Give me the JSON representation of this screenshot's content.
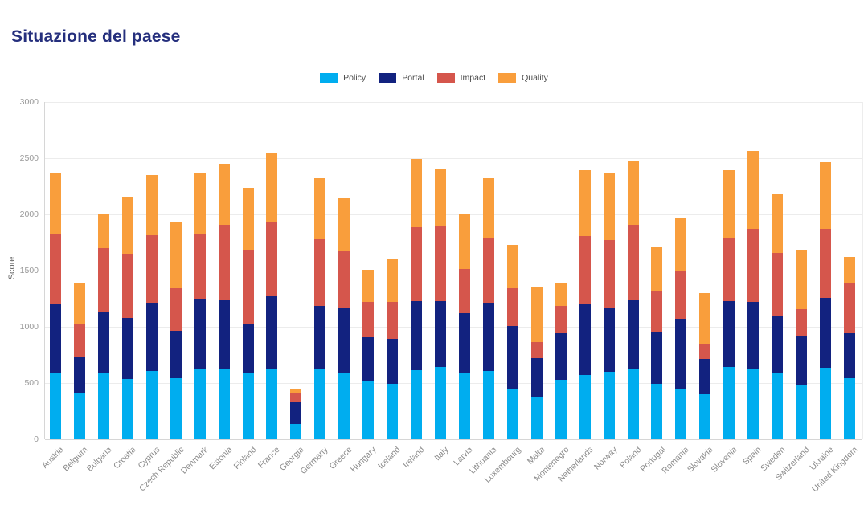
{
  "page": {
    "title": "Situazione del paese"
  },
  "chart_data": {
    "type": "bar",
    "stacked": true,
    "title": "Situazione del paese",
    "xlabel": "",
    "ylabel": "Score",
    "ylim": [
      0,
      3000
    ],
    "yticks": [
      0,
      500,
      1000,
      1500,
      2000,
      2500,
      3000
    ],
    "grid": true,
    "legend_position": "top-center",
    "categories": [
      "Austria",
      "Belgium",
      "Bulgaria",
      "Croatia",
      "Cyprus",
      "Czech Republic",
      "Denmark",
      "Estonia",
      "Finland",
      "France",
      "Georgia",
      "Germany",
      "Greece",
      "Hungary",
      "Iceland",
      "Ireland",
      "Italy",
      "Latvia",
      "Lithuania",
      "Luxembourg",
      "Malta",
      "Montenegro",
      "Netherlands",
      "Norway",
      "Poland",
      "Portugal",
      "Romania",
      "Slovakia",
      "Slovenia",
      "Spain",
      "Sweden",
      "Switzerland",
      "Ukraine",
      "United Kingdom"
    ],
    "series": [
      {
        "name": "Policy",
        "color": "#00ADEF",
        "values": [
          595,
          405,
          595,
          535,
          610,
          540,
          630,
          630,
          590,
          630,
          135,
          630,
          590,
          520,
          495,
          615,
          645,
          595,
          605,
          450,
          380,
          530,
          570,
          600,
          625,
          495,
          450,
          400,
          645,
          620,
          585,
          480,
          635,
          540
        ]
      },
      {
        "name": "Portal",
        "color": "#12227F",
        "values": [
          605,
          330,
          535,
          545,
          605,
          425,
          620,
          615,
          435,
          640,
          200,
          555,
          575,
          385,
          400,
          615,
          585,
          525,
          610,
          560,
          340,
          410,
          630,
          575,
          620,
          465,
          620,
          315,
          585,
          600,
          505,
          435,
          620,
          400
        ]
      },
      {
        "name": "Impact",
        "color": "#D5564C",
        "values": [
          625,
          285,
          570,
          570,
          600,
          380,
          570,
          660,
          660,
          660,
          70,
          595,
          510,
          315,
          325,
          655,
          660,
          395,
          580,
          335,
          145,
          245,
          605,
          595,
          660,
          360,
          430,
          125,
          560,
          655,
          565,
          245,
          620,
          455
        ]
      },
      {
        "name": "Quality",
        "color": "#F99E3C",
        "values": [
          550,
          370,
          310,
          505,
          535,
          585,
          555,
          545,
          550,
          610,
          35,
          545,
          475,
          285,
          385,
          605,
          515,
          490,
          530,
          385,
          485,
          205,
          585,
          605,
          565,
          395,
          470,
          460,
          600,
          690,
          530,
          525,
          590,
          225
        ]
      }
    ]
  }
}
